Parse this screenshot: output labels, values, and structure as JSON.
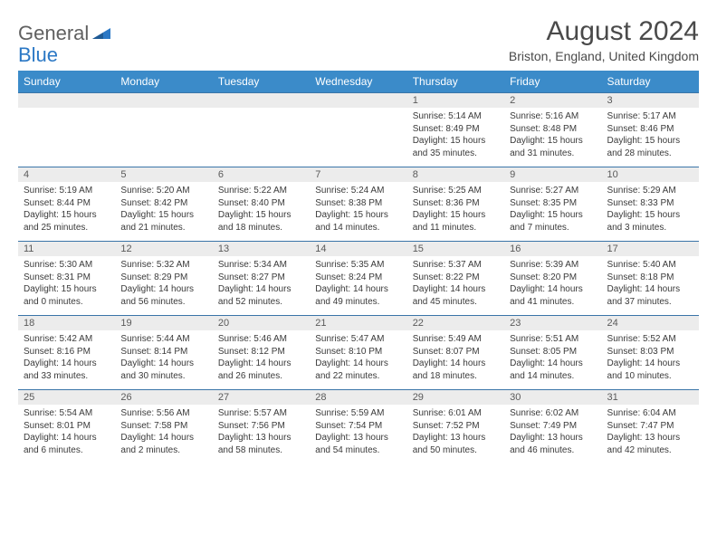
{
  "logo": {
    "general": "General",
    "blue": "Blue"
  },
  "title": "August 2024",
  "subtitle": "Briston, England, United Kingdom",
  "colors": {
    "header_bg": "#3b8bc9",
    "header_fg": "#ffffff",
    "numrow_bg": "#ececec",
    "rule": "#3a75a8",
    "title_color": "#4a4a4a",
    "logo_gray": "#606060",
    "logo_blue": "#2b78c5"
  },
  "daynames": [
    "Sunday",
    "Monday",
    "Tuesday",
    "Wednesday",
    "Thursday",
    "Friday",
    "Saturday"
  ],
  "weeks": [
    {
      "nums": [
        "",
        "",
        "",
        "",
        "1",
        "2",
        "3"
      ],
      "cells": [
        "",
        "",
        "",
        "",
        "Sunrise: 5:14 AM\nSunset: 8:49 PM\nDaylight: 15 hours and 35 minutes.",
        "Sunrise: 5:16 AM\nSunset: 8:48 PM\nDaylight: 15 hours and 31 minutes.",
        "Sunrise: 5:17 AM\nSunset: 8:46 PM\nDaylight: 15 hours and 28 minutes."
      ]
    },
    {
      "nums": [
        "4",
        "5",
        "6",
        "7",
        "8",
        "9",
        "10"
      ],
      "cells": [
        "Sunrise: 5:19 AM\nSunset: 8:44 PM\nDaylight: 15 hours and 25 minutes.",
        "Sunrise: 5:20 AM\nSunset: 8:42 PM\nDaylight: 15 hours and 21 minutes.",
        "Sunrise: 5:22 AM\nSunset: 8:40 PM\nDaylight: 15 hours and 18 minutes.",
        "Sunrise: 5:24 AM\nSunset: 8:38 PM\nDaylight: 15 hours and 14 minutes.",
        "Sunrise: 5:25 AM\nSunset: 8:36 PM\nDaylight: 15 hours and 11 minutes.",
        "Sunrise: 5:27 AM\nSunset: 8:35 PM\nDaylight: 15 hours and 7 minutes.",
        "Sunrise: 5:29 AM\nSunset: 8:33 PM\nDaylight: 15 hours and 3 minutes."
      ]
    },
    {
      "nums": [
        "11",
        "12",
        "13",
        "14",
        "15",
        "16",
        "17"
      ],
      "cells": [
        "Sunrise: 5:30 AM\nSunset: 8:31 PM\nDaylight: 15 hours and 0 minutes.",
        "Sunrise: 5:32 AM\nSunset: 8:29 PM\nDaylight: 14 hours and 56 minutes.",
        "Sunrise: 5:34 AM\nSunset: 8:27 PM\nDaylight: 14 hours and 52 minutes.",
        "Sunrise: 5:35 AM\nSunset: 8:24 PM\nDaylight: 14 hours and 49 minutes.",
        "Sunrise: 5:37 AM\nSunset: 8:22 PM\nDaylight: 14 hours and 45 minutes.",
        "Sunrise: 5:39 AM\nSunset: 8:20 PM\nDaylight: 14 hours and 41 minutes.",
        "Sunrise: 5:40 AM\nSunset: 8:18 PM\nDaylight: 14 hours and 37 minutes."
      ]
    },
    {
      "nums": [
        "18",
        "19",
        "20",
        "21",
        "22",
        "23",
        "24"
      ],
      "cells": [
        "Sunrise: 5:42 AM\nSunset: 8:16 PM\nDaylight: 14 hours and 33 minutes.",
        "Sunrise: 5:44 AM\nSunset: 8:14 PM\nDaylight: 14 hours and 30 minutes.",
        "Sunrise: 5:46 AM\nSunset: 8:12 PM\nDaylight: 14 hours and 26 minutes.",
        "Sunrise: 5:47 AM\nSunset: 8:10 PM\nDaylight: 14 hours and 22 minutes.",
        "Sunrise: 5:49 AM\nSunset: 8:07 PM\nDaylight: 14 hours and 18 minutes.",
        "Sunrise: 5:51 AM\nSunset: 8:05 PM\nDaylight: 14 hours and 14 minutes.",
        "Sunrise: 5:52 AM\nSunset: 8:03 PM\nDaylight: 14 hours and 10 minutes."
      ]
    },
    {
      "nums": [
        "25",
        "26",
        "27",
        "28",
        "29",
        "30",
        "31"
      ],
      "cells": [
        "Sunrise: 5:54 AM\nSunset: 8:01 PM\nDaylight: 14 hours and 6 minutes.",
        "Sunrise: 5:56 AM\nSunset: 7:58 PM\nDaylight: 14 hours and 2 minutes.",
        "Sunrise: 5:57 AM\nSunset: 7:56 PM\nDaylight: 13 hours and 58 minutes.",
        "Sunrise: 5:59 AM\nSunset: 7:54 PM\nDaylight: 13 hours and 54 minutes.",
        "Sunrise: 6:01 AM\nSunset: 7:52 PM\nDaylight: 13 hours and 50 minutes.",
        "Sunrise: 6:02 AM\nSunset: 7:49 PM\nDaylight: 13 hours and 46 minutes.",
        "Sunrise: 6:04 AM\nSunset: 7:47 PM\nDaylight: 13 hours and 42 minutes."
      ]
    }
  ]
}
